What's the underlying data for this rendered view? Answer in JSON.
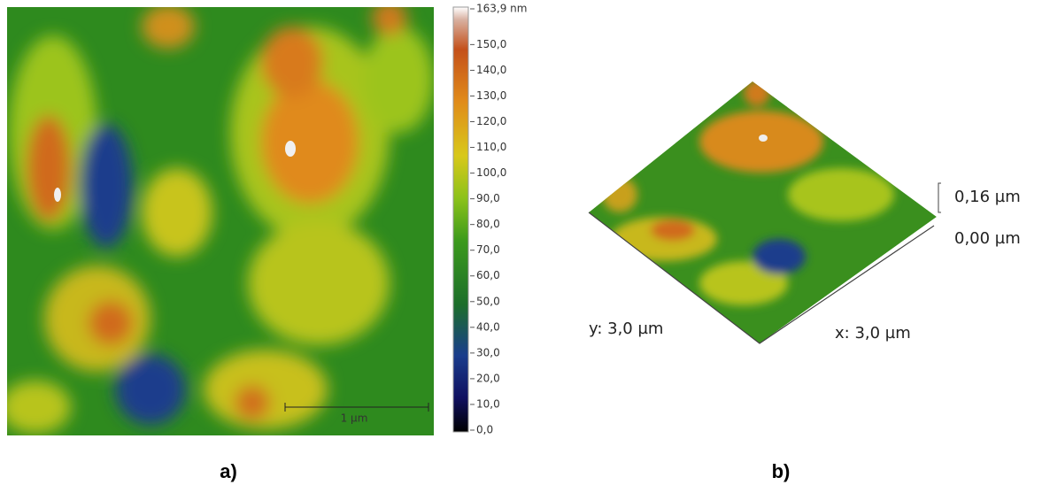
{
  "panel_a": {
    "colorbar": {
      "lim": [
        0,
        163.9
      ],
      "ticks": [
        {
          "value": 163.9,
          "label": "163,9 nm"
        },
        {
          "value": 150,
          "label": "150,0"
        },
        {
          "value": 140,
          "label": "140,0"
        },
        {
          "value": 130,
          "label": "130,0"
        },
        {
          "value": 120,
          "label": "120,0"
        },
        {
          "value": 110,
          "label": "110,0"
        },
        {
          "value": 100,
          "label": "100,0"
        },
        {
          "value": 90,
          "label": "90,0"
        },
        {
          "value": 80,
          "label": "80,0"
        },
        {
          "value": 70,
          "label": "70,0"
        },
        {
          "value": 60,
          "label": "60,0"
        },
        {
          "value": 50,
          "label": "50,0"
        },
        {
          "value": 40,
          "label": "40,0"
        },
        {
          "value": 30,
          "label": "30,0"
        },
        {
          "value": 20,
          "label": "20,0"
        },
        {
          "value": 10,
          "label": "10,0"
        },
        {
          "value": 0,
          "label": "0,0"
        }
      ]
    },
    "scale_bar": "1 µm",
    "label": "a)"
  },
  "panel_b": {
    "z_top": "0,16 µm",
    "z_bottom": "0,00 µm",
    "y_axis": "y: 3,0 µm",
    "x_axis": "x: 3,0 µm",
    "label": "b)"
  }
}
